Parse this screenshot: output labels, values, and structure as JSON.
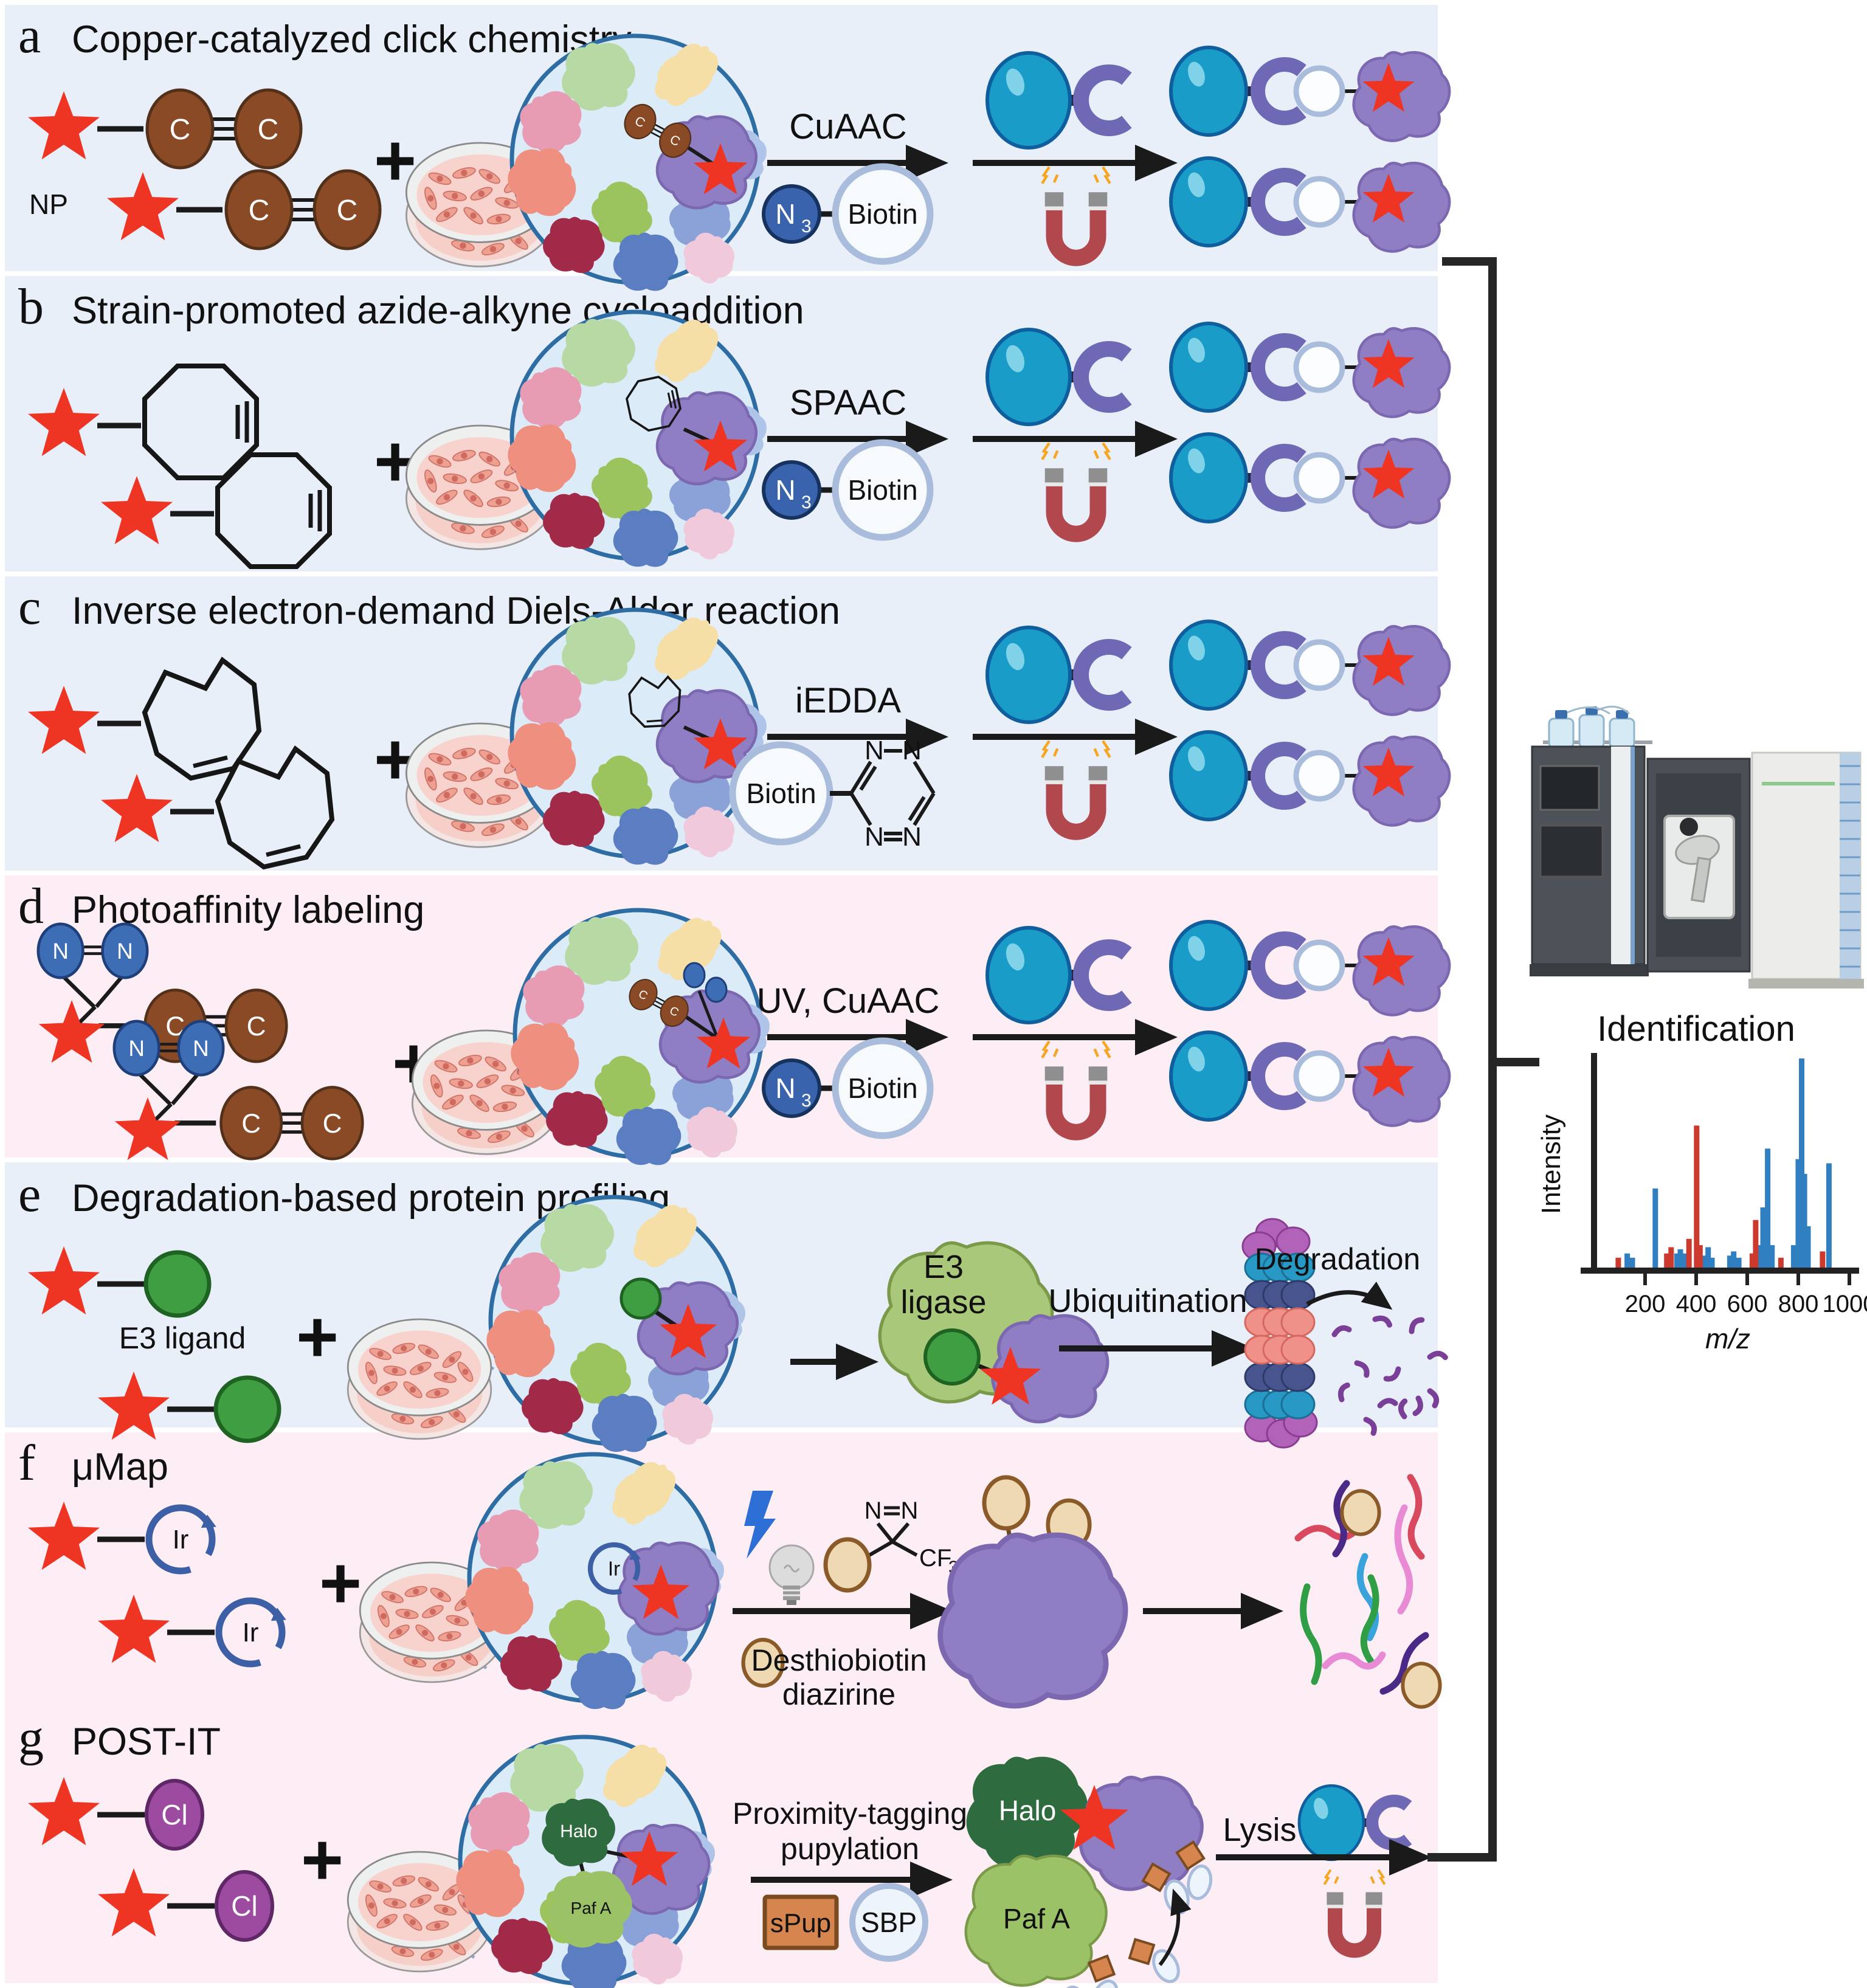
{
  "panels": {
    "a": {
      "letter": "a",
      "title": "Copper-catalyzed click chemistry",
      "np_label": "NP",
      "arrow1_label": "CuAAC"
    },
    "b": {
      "letter": "b",
      "title": "Strain-promoted azide-alkyne cycloaddition",
      "arrow1_label": "SPAAC"
    },
    "c": {
      "letter": "c",
      "title": "Inverse electron-demand Diels-Alder reaction",
      "arrow1_label": "iEDDA"
    },
    "d": {
      "letter": "d",
      "title": "Photoaffinity labeling",
      "arrow1_label": "UV, CuAAC"
    },
    "e": {
      "letter": "e",
      "title": "Degradation-based protein profiling",
      "ligand_label": "E3 ligand",
      "ligase_line1": "E3",
      "ligase_line2": "ligase",
      "arrow2_label": "Ubiquitination",
      "degradation_label": "Degradation"
    },
    "f": {
      "letter": "f",
      "title": "μMap",
      "ir_label": "Ir",
      "cf_label": "CF",
      "cf_sub": "3",
      "label_line1": "Desthiobiotin",
      "label_line2": "diazirine"
    },
    "g": {
      "letter": "g",
      "title": "POST-IT",
      "cl_label": "Cl",
      "halo_label": "Halo",
      "pafa_label": "Paf A",
      "arrow1_line1": "Proximity-tagging",
      "arrow1_line2": "pupylation",
      "spup_label": "sPup",
      "sbp_label": "SBP",
      "lysis_label": "Lysis"
    }
  },
  "reagents": {
    "azide_n": "N",
    "azide_sub": "3",
    "biotin": "Biotin"
  },
  "glyphs": {
    "plus": "+",
    "carbon": "C",
    "nitrogen": "N"
  },
  "right": {
    "identification_label": "Identification"
  },
  "colors": {
    "panel_blue": "#e9eff9",
    "panel_pink": "#fdedf4",
    "star_red": "#ee3524",
    "alkyne_brown": "#8a4a26",
    "azide_blue": "#3a63ae",
    "bead_teal": "#1a9cc9",
    "streptavidin_purple": "#6f68b4",
    "magnet_red": "#b0484e",
    "protein_purple": "#8f7ec4",
    "e3_green": "#3e9e41",
    "halo_green": "#2e6b3e",
    "pafa_green": "#9cc268",
    "spup_orange": "#d5854d",
    "cl_purple": "#9c4ba0"
  },
  "chart_data": {
    "type": "bar",
    "title": "",
    "xlabel": "m/z",
    "ylabel": "Intensity",
    "xlim": [
      0,
      1040
    ],
    "ylim": [
      0,
      1
    ],
    "xticks": [
      200,
      400,
      600,
      800,
      1000
    ],
    "grid": false,
    "legend": "none",
    "series": [
      {
        "name": "blue",
        "color": "#2f7fc1",
        "points": [
          [
            130,
            0.07
          ],
          [
            150,
            0.05
          ],
          [
            240,
            0.38
          ],
          [
            325,
            0.07
          ],
          [
            338,
            0.09
          ],
          [
            352,
            0.07
          ],
          [
            432,
            0.06
          ],
          [
            447,
            0.1
          ],
          [
            462,
            0.05
          ],
          [
            532,
            0.06
          ],
          [
            547,
            0.08
          ],
          [
            567,
            0.05
          ],
          [
            645,
            0.11
          ],
          [
            662,
            0.29
          ],
          [
            680,
            0.57
          ],
          [
            697,
            0.11
          ],
          [
            782,
            0.11
          ],
          [
            800,
            0.52
          ],
          [
            813,
            1.0
          ],
          [
            824,
            0.45
          ],
          [
            838,
            0.2
          ],
          [
            920,
            0.5
          ]
        ]
      },
      {
        "name": "red",
        "color": "#cc3a2e",
        "points": [
          [
            95,
            0.05
          ],
          [
            285,
            0.07
          ],
          [
            302,
            0.1
          ],
          [
            372,
            0.14
          ],
          [
            402,
            0.68
          ],
          [
            415,
            0.11
          ],
          [
            620,
            0.07
          ],
          [
            633,
            0.23
          ],
          [
            732,
            0.05
          ],
          [
            895,
            0.08
          ]
        ]
      }
    ]
  }
}
